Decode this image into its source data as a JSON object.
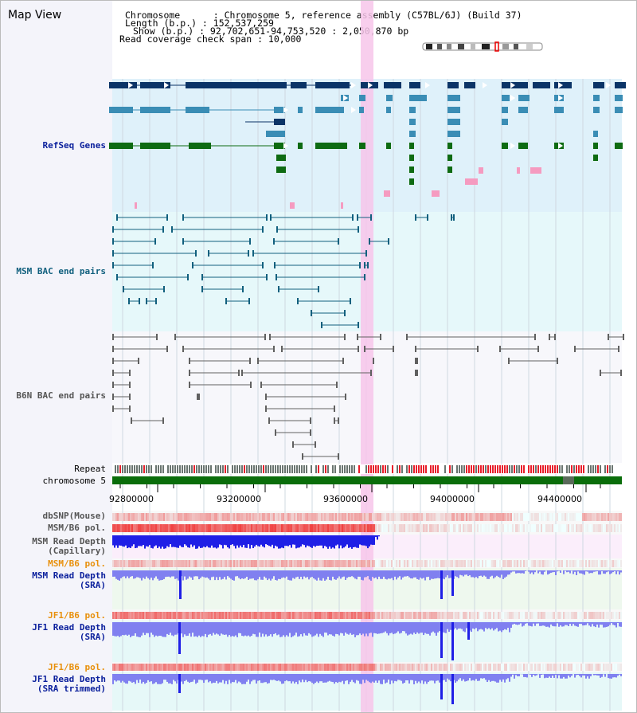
{
  "page_title": "Map View",
  "header": {
    "line1": "Chromosome      : Chromosome 5, reference assembly (C57BL/6J) (Build 37)",
    "line2": "Length (b.p.) : 152,537,259",
    "line3": "Show (b.p.) : 92,702,651-94,753,520 : 2,050,870 bp",
    "line4": "Read coverage check span : 10,000"
  },
  "tracks": {
    "refseq": "RefSeq Genes",
    "msm_bac": "MSM BAC end pairs",
    "b6n_bac": "B6N BAC end pairs",
    "repeat": "Repeat",
    "chromosome": "chromosome 5",
    "dbsnp": "dbSNP(Mouse)",
    "msm_b6_pol_1": "MSM/B6 pol.",
    "msm_read_depth_cap_1": "MSM Read Depth",
    "msm_read_depth_cap_2": "(Capillary)",
    "msm_b6_pol_2": "MSM/B6 pol.",
    "msm_read_depth_sra_1": "MSM Read Depth",
    "msm_read_depth_sra_2": "(SRA)",
    "jf1_b6_pol_1": "JF1/B6 pol.",
    "jf1_read_depth_sra_1": "JF1 Read Depth",
    "jf1_read_depth_sra_2": "(SRA)",
    "jf1_b6_pol_2": "JF1/B6 pol.",
    "jf1_read_depth_trim_1": "JF1 Read Depth",
    "jf1_read_depth_trim_2": "(SRA trimmed)"
  },
  "scale": {
    "ticks": [
      "92800000",
      "93200000",
      "93600000",
      "94000000",
      "94400000"
    ]
  },
  "colors": {
    "refseq_dark": "#0b3467",
    "refseq_mid": "#3a8db5",
    "refseq_green": "#0e6b12",
    "refseq_pink": "#f59bc0",
    "msm_line": "#11607e",
    "b6n_line": "#606060",
    "highlight": "#f7c6ea",
    "depth_blue": "#1f1fe6",
    "depth_light": "#8080f0",
    "pol_red": "#e81f2b",
    "chrom_green": "#0a6d0a"
  }
}
